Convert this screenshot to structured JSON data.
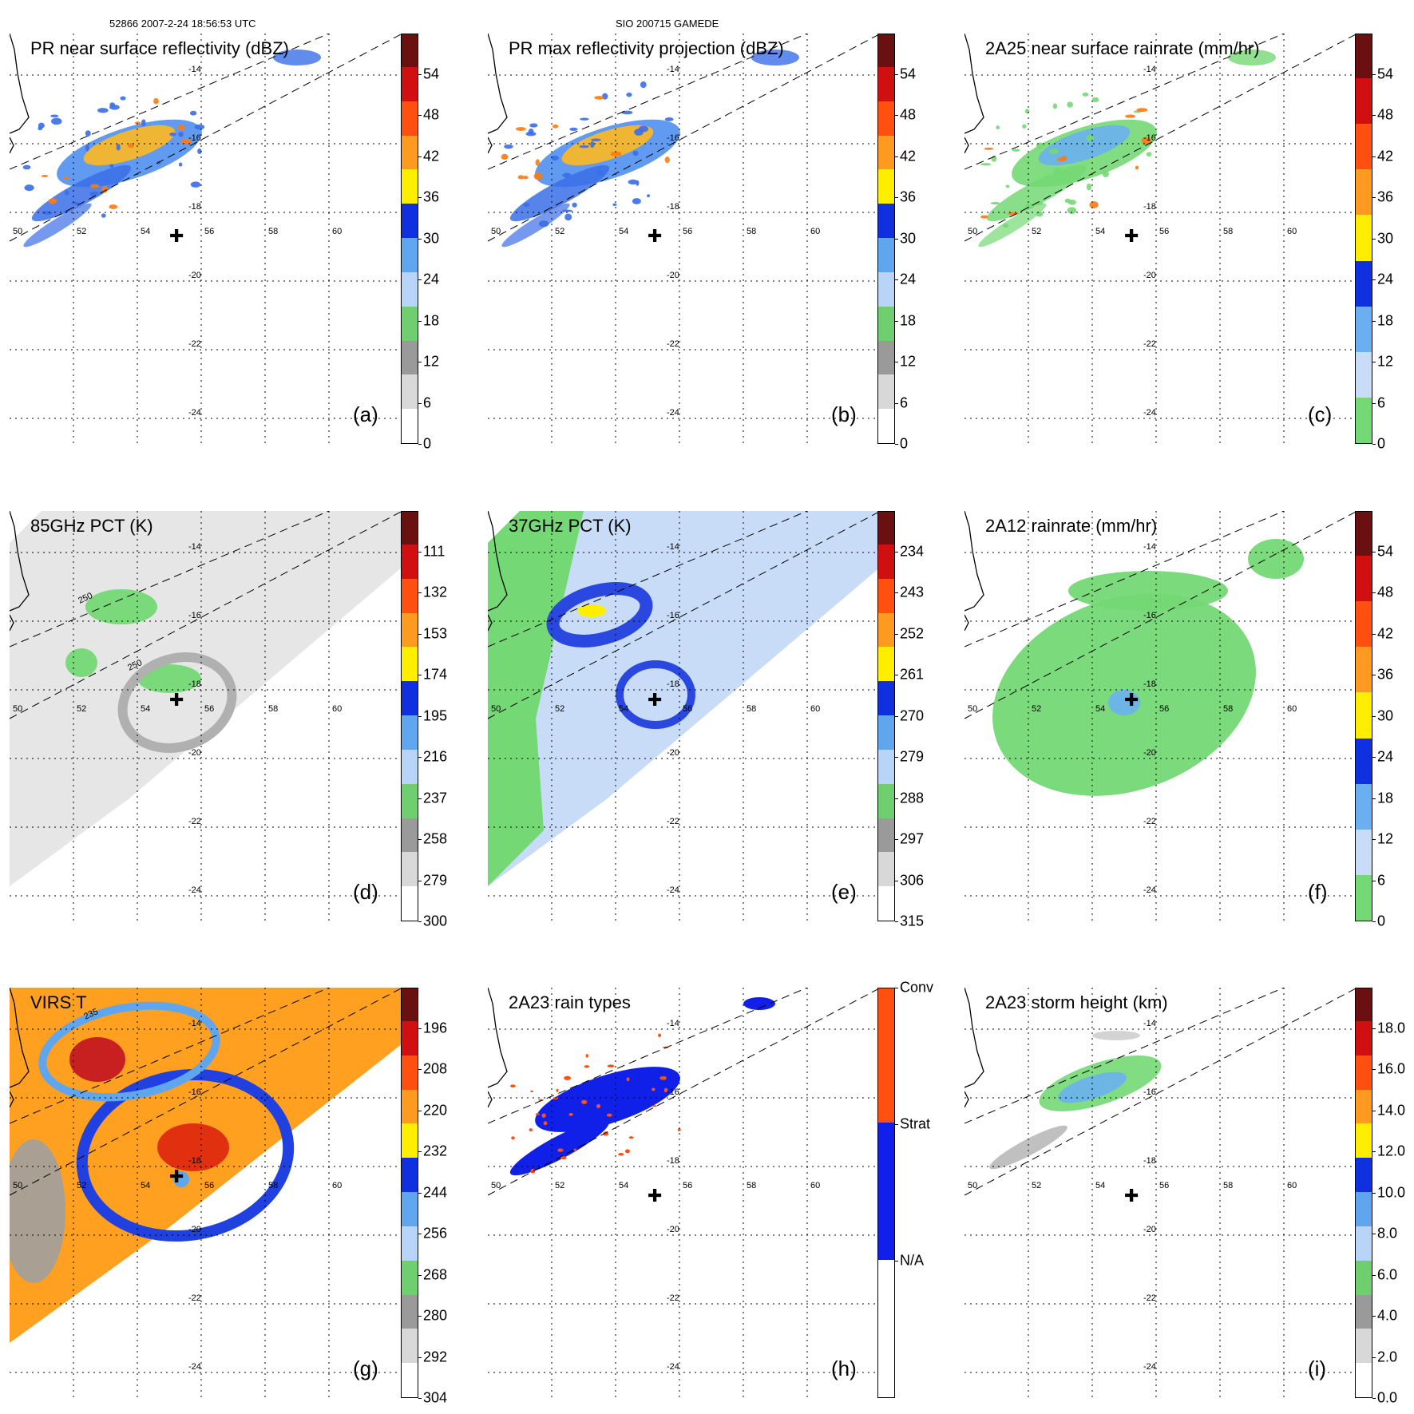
{
  "header": {
    "left": "52866 2007-2-24 18:56:53 UTC",
    "center": "SIO 200715 GAMEDE"
  },
  "axes": {
    "lon_ticks": [
      "50",
      "52",
      "54",
      "56",
      "58",
      "60"
    ],
    "lat_ticks": [
      "-14",
      "-16",
      "-18",
      "-20",
      "-22",
      "-24"
    ]
  },
  "panels": [
    {
      "id": "a",
      "title": "PR near surface reflectivity (dBZ)",
      "label": "(a)",
      "colorbar": [
        "54",
        "48",
        "42",
        "36",
        "30",
        "24",
        "18",
        "12",
        "6",
        "0"
      ]
    },
    {
      "id": "b",
      "title": "PR max reflectivity projection (dBZ)",
      "label": "(b)",
      "colorbar": [
        "54",
        "48",
        "42",
        "36",
        "30",
        "24",
        "18",
        "12",
        "6",
        "0"
      ]
    },
    {
      "id": "c",
      "title": "2A25 near surface rainrate (mm/hr)",
      "label": "(c)",
      "colorbar": [
        "54",
        "48",
        "42",
        "36",
        "30",
        "24",
        "18",
        "12",
        "6",
        "0"
      ]
    },
    {
      "id": "d",
      "title": "85GHz PCT (K)",
      "label": "(d)",
      "colorbar": [
        "111",
        "132",
        "153",
        "174",
        "195",
        "216",
        "237",
        "258",
        "279",
        "300"
      ],
      "contour_labels": [
        "250",
        "250"
      ]
    },
    {
      "id": "e",
      "title": "37GHz PCT (K)",
      "label": "(e)",
      "colorbar": [
        "234",
        "243",
        "252",
        "261",
        "270",
        "279",
        "288",
        "297",
        "306",
        "315"
      ]
    },
    {
      "id": "f",
      "title": "2A12 rainrate (mm/hr)",
      "label": "(f)",
      "colorbar": [
        "54",
        "48",
        "42",
        "36",
        "30",
        "24",
        "18",
        "12",
        "6",
        "0"
      ]
    },
    {
      "id": "g",
      "title": "VIRS T",
      "label": "(g)",
      "colorbar": [
        "196",
        "208",
        "220",
        "232",
        "244",
        "256",
        "268",
        "280",
        "292",
        "304"
      ],
      "contour_labels": [
        "235"
      ]
    },
    {
      "id": "h",
      "title": "2A23 rain types",
      "label": "(h)",
      "colorbar": [
        "Conv",
        "Strat",
        "N/A"
      ]
    },
    {
      "id": "i",
      "title": "2A23 storm height (km)",
      "label": "(i)",
      "colorbar": [
        "18.0",
        "16.0",
        "14.0",
        "12.0",
        "10.0",
        "8.0",
        "6.0",
        "4.0",
        "2.0",
        "0.0"
      ]
    }
  ],
  "colors": {
    "bar_standard": [
      "#ffffff",
      "#d8d8d8",
      "#9a9a9a",
      "#6fcf6f",
      "#b8d4f8",
      "#5fa6ee",
      "#1030e0",
      "#ffee00",
      "#ff9a20",
      "#ff5010",
      "#d01010",
      "#6a1010"
    ],
    "bar_rain": [
      "#74d874",
      "#c8dcf8",
      "#6ab0f0",
      "#1030e0",
      "#ffee00",
      "#ff9a20",
      "#ff5010",
      "#d01010",
      "#6a1010"
    ],
    "conv": "#ff5010",
    "strat": "#1020e8",
    "na": "#ffffff"
  }
}
